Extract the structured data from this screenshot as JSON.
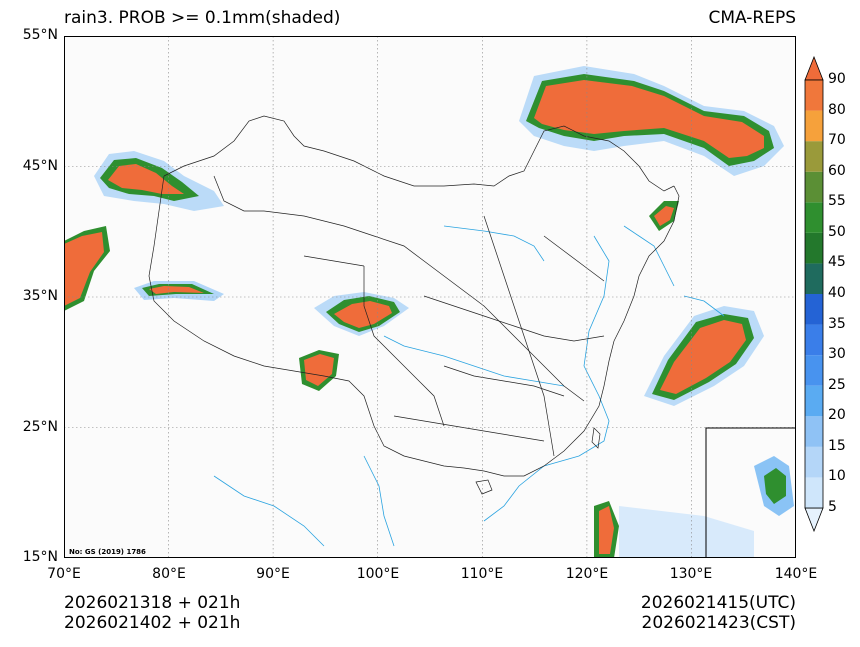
{
  "header": {
    "title_left": "rain3. PROB >= 0.1mm(shaded)",
    "title_right": "CMA-REPS"
  },
  "map": {
    "lat_labels": [
      "55°N",
      "45°N",
      "35°N",
      "25°N",
      "15°N"
    ],
    "lon_labels": [
      "70°E",
      "80°E",
      "90°E",
      "100°E",
      "110°E",
      "120°E",
      "130°E",
      "140°E"
    ],
    "stamp": "No: GS (2019) 1786",
    "colors": {
      "land_bg": "#fbfbfb",
      "border": "#222222",
      "river": "#2aa3e0",
      "grid": "#888888"
    }
  },
  "colorbar": {
    "levels": [
      "5",
      "10",
      "15",
      "20",
      "25",
      "30",
      "35",
      "40",
      "45",
      "50",
      "55",
      "60",
      "70",
      "80",
      "90"
    ],
    "colors": [
      "#e6f2fd",
      "#cfe6fb",
      "#b4d6f8",
      "#8fc2f5",
      "#5aabf2",
      "#4893ef",
      "#3a7ee9",
      "#2463d5",
      "#1f6b5e",
      "#23782c",
      "#2f8f2f",
      "#5b8f35",
      "#9a9a3a",
      "#f6a13b",
      "#f0773b",
      "#ef6c3a"
    ]
  },
  "footer": {
    "init_utc": "2026021318  +  021h",
    "init_cst": "2026021402  +  021h",
    "valid_utc": "2026021415(UTC)",
    "valid_cst": "2026021423(CST)"
  }
}
